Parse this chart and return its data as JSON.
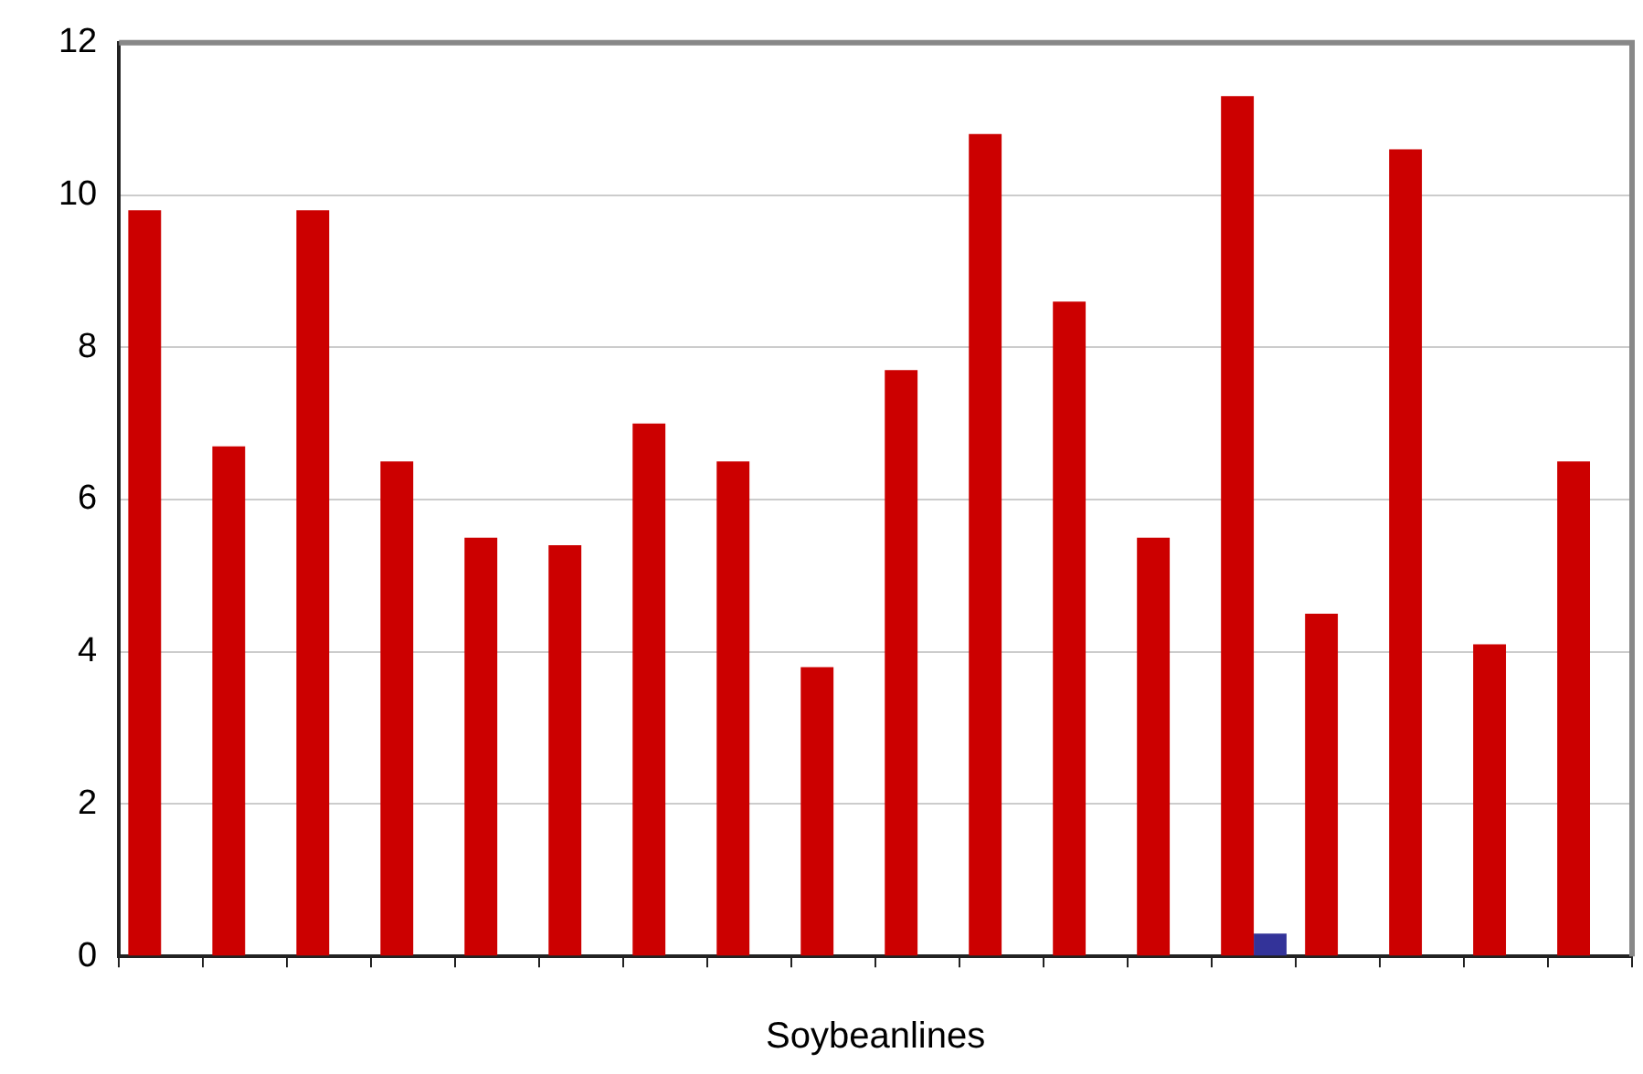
{
  "chart_data": {
    "type": "bar",
    "xlabel": "Soybeanlines",
    "categories": [
      null,
      null,
      null,
      null,
      null,
      null,
      null,
      null,
      null,
      null,
      null,
      null,
      null,
      null,
      null,
      null,
      null,
      null
    ],
    "series": [
      {
        "color": "#cc0000",
        "values": [
          9.8,
          6.7,
          9.8,
          6.5,
          5.5,
          5.4,
          7.0,
          6.5,
          3.8,
          7.7,
          10.8,
          8.6,
          5.5,
          11.3,
          4.5,
          10.6,
          4.1,
          6.5
        ]
      },
      {
        "color": "#333399",
        "values": [
          null,
          null,
          null,
          null,
          null,
          null,
          null,
          null,
          null,
          null,
          null,
          null,
          null,
          0.3,
          null,
          null,
          null,
          null
        ]
      }
    ],
    "ylim": [
      0,
      12
    ],
    "yticks": [
      0,
      2,
      4,
      6,
      8,
      10,
      12
    ],
    "grid": "y",
    "legend": false
  }
}
